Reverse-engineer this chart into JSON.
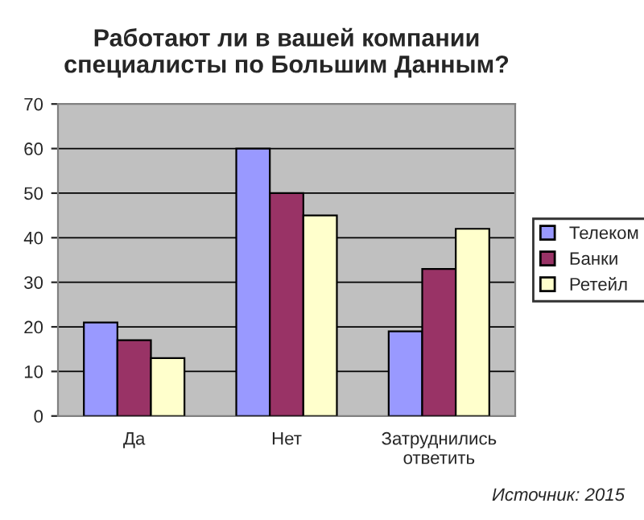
{
  "chart_data": {
    "type": "bar",
    "title": "Работают ли в вашей компании\nспециалисты по Большим Данным?",
    "categories": [
      "Да",
      "Нет",
      "Затруднились\nответить"
    ],
    "series": [
      {
        "name": "Телеком",
        "color": "#9999ff",
        "values": [
          21,
          60,
          19
        ]
      },
      {
        "name": "Банки",
        "color": "#993366",
        "values": [
          17,
          50,
          33
        ]
      },
      {
        "name": "Ретейл",
        "color": "#ffffcc",
        "values": [
          13,
          45,
          42
        ]
      }
    ],
    "ylim": [
      0,
      70
    ],
    "yticks": [
      0,
      10,
      20,
      30,
      40,
      50,
      60,
      70
    ],
    "grid": "y",
    "legend": "right",
    "annotations": [
      "Источник: 2015"
    ]
  }
}
